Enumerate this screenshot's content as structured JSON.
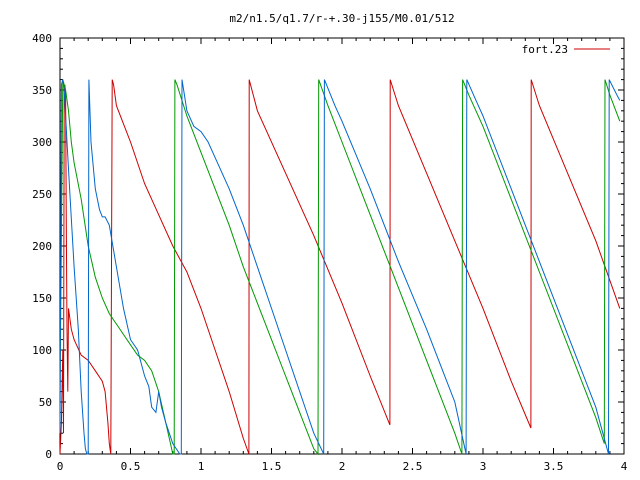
{
  "chart_data": {
    "type": "line",
    "title": "m2/n1.5/q1.7/r-+.30-j155/M0.01/512",
    "xlabel": "",
    "ylabel": "",
    "xlim": [
      0,
      4
    ],
    "ylim": [
      0,
      400
    ],
    "x_ticks": [
      0,
      0.5,
      1,
      1.5,
      2,
      2.5,
      3,
      3.5,
      4
    ],
    "x_tick_labels": [
      "0",
      "0.5",
      "1",
      "1.5",
      "2",
      "2.5",
      "3",
      "3.5",
      "4"
    ],
    "y_ticks": [
      0,
      50,
      100,
      150,
      200,
      250,
      300,
      350,
      400
    ],
    "y_tick_labels": [
      "0",
      "50",
      "100",
      "150",
      "200",
      "250",
      "300",
      "350",
      "400"
    ],
    "grid": false,
    "legend_position": "top-right",
    "series": [
      {
        "name": "fort.23",
        "color": "#cc0000",
        "x": [
          0.0,
          0.01,
          0.02,
          0.025,
          0.03,
          0.035,
          0.04,
          0.045,
          0.05,
          0.055,
          0.06,
          0.07,
          0.08,
          0.1,
          0.15,
          0.2,
          0.25,
          0.3,
          0.32,
          0.34,
          0.35,
          0.36,
          0.37,
          0.38,
          0.39,
          0.4,
          0.5,
          0.6,
          0.7,
          0.8,
          0.9,
          1.0,
          1.1,
          1.2,
          1.3,
          1.34,
          1.342,
          1.4,
          1.6,
          1.8,
          2.0,
          2.2,
          2.34,
          2.342,
          2.4,
          2.6,
          2.8,
          3.0,
          3.2,
          3.34,
          3.342,
          3.4,
          3.6,
          3.8,
          3.97
        ],
        "y": [
          0,
          30,
          100,
          20,
          350,
          355,
          345,
          220,
          120,
          60,
          140,
          130,
          120,
          110,
          95,
          90,
          80,
          70,
          60,
          30,
          10,
          0,
          360,
          355,
          345,
          335,
          300,
          260,
          230,
          200,
          175,
          140,
          100,
          60,
          15,
          0,
          360,
          330,
          270,
          210,
          145,
          75,
          28,
          360,
          335,
          270,
          205,
          140,
          70,
          25,
          360,
          335,
          270,
          205,
          140
        ]
      },
      {
        "name": "",
        "color": "#009900",
        "x": [
          0.0,
          0.02,
          0.04,
          0.06,
          0.08,
          0.1,
          0.15,
          0.2,
          0.25,
          0.3,
          0.35,
          0.4,
          0.5,
          0.55,
          0.6,
          0.65,
          0.7,
          0.75,
          0.8,
          0.81,
          0.815,
          0.83,
          0.9,
          1.0,
          1.1,
          1.2,
          1.3,
          1.4,
          1.5,
          1.6,
          1.7,
          1.8,
          1.83,
          1.835,
          1.9,
          2.0,
          2.2,
          2.4,
          2.6,
          2.8,
          2.85,
          2.855,
          2.9,
          3.0,
          3.2,
          3.4,
          3.6,
          3.8,
          3.86,
          3.865,
          3.9,
          3.97
        ],
        "y": [
          60,
          360,
          350,
          330,
          300,
          280,
          245,
          200,
          170,
          150,
          135,
          125,
          105,
          95,
          90,
          80,
          60,
          30,
          0,
          0,
          360,
          355,
          325,
          290,
          255,
          220,
          180,
          145,
          110,
          75,
          40,
          5,
          0,
          360,
          335,
          300,
          230,
          160,
          90,
          20,
          0,
          360,
          345,
          315,
          245,
          175,
          105,
          35,
          10,
          360,
          345,
          320
        ]
      },
      {
        "name": "",
        "color": "#0066cc",
        "x": [
          0.0,
          0.01,
          0.02,
          0.03,
          0.05,
          0.07,
          0.1,
          0.13,
          0.15,
          0.17,
          0.18,
          0.19,
          0.2,
          0.205,
          0.22,
          0.25,
          0.28,
          0.3,
          0.32,
          0.35,
          0.4,
          0.45,
          0.5,
          0.55,
          0.6,
          0.63,
          0.65,
          0.68,
          0.7,
          0.72,
          0.75,
          0.8,
          0.85,
          0.86,
          0.865,
          0.9,
          0.95,
          1.0,
          1.05,
          1.1,
          1.2,
          1.3,
          1.4,
          1.5,
          1.6,
          1.7,
          1.8,
          1.87,
          1.875,
          1.95,
          2.0,
          2.2,
          2.4,
          2.6,
          2.8,
          2.88,
          2.885,
          2.95,
          3.0,
          3.2,
          3.4,
          3.6,
          3.8,
          3.89,
          3.895,
          3.95,
          3.97
        ],
        "y": [
          20,
          355,
          360,
          350,
          300,
          250,
          180,
          120,
          60,
          20,
          5,
          0,
          0,
          360,
          300,
          255,
          235,
          228,
          228,
          220,
          180,
          140,
          110,
          100,
          75,
          65,
          45,
          40,
          60,
          45,
          30,
          10,
          0,
          0,
          360,
          330,
          315,
          310,
          300,
          285,
          255,
          220,
          180,
          140,
          100,
          60,
          20,
          0,
          360,
          335,
          320,
          255,
          185,
          120,
          50,
          0,
          360,
          340,
          325,
          255,
          185,
          115,
          45,
          0,
          360,
          345,
          340
        ]
      }
    ]
  }
}
